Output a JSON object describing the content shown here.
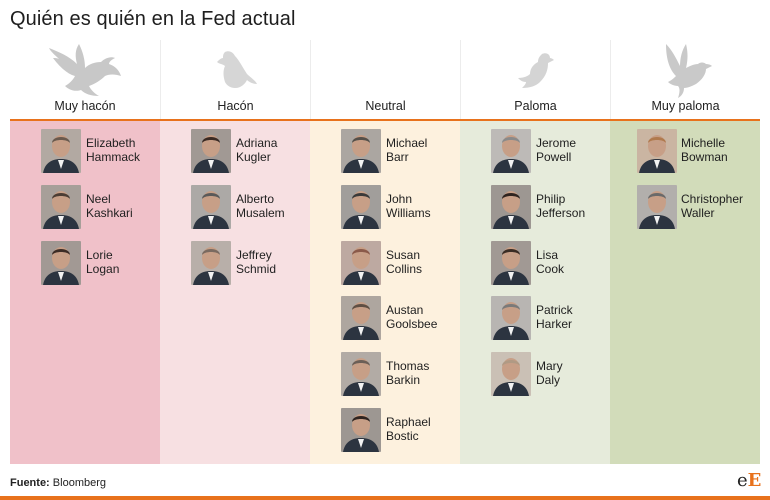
{
  "title": "Quién es quién en la Fed actual",
  "source": {
    "label": "Fuente:",
    "value": "Bloomberg"
  },
  "logo": {
    "char1": "e",
    "char2": "E"
  },
  "accent_color": "#e8721c",
  "columns": [
    {
      "label": "Muy hacón",
      "icon": "hawk-large-icon",
      "bg": "#f0c1c9",
      "people": [
        {
          "first": "Elizabeth",
          "last": "Hammack",
          "avatar_color": "#6a5a4e"
        },
        {
          "first": "Neel",
          "last": "Kashkari",
          "avatar_color": "#4b3d34"
        },
        {
          "first": "Lorie",
          "last": "Logan",
          "avatar_color": "#3c2c26"
        }
      ]
    },
    {
      "label": "Hacón",
      "icon": "hawk-small-icon",
      "bg": "#f7e0e2",
      "people": [
        {
          "first": "Adriana",
          "last": "Kugler",
          "avatar_color": "#3a2a24"
        },
        {
          "first": "Alberto",
          "last": "Musalem",
          "avatar_color": "#5a5a5a"
        },
        {
          "first": "Jeffrey",
          "last": "Schmid",
          "avatar_color": "#7a6a60"
        }
      ]
    },
    {
      "label": "Neutral",
      "icon": "",
      "bg": "#fdf1de",
      "people": [
        {
          "first": "Michael",
          "last": "Barr",
          "avatar_color": "#55504a"
        },
        {
          "first": "John",
          "last": "Williams",
          "avatar_color": "#3a3a3a"
        },
        {
          "first": "Susan",
          "last": "Collins",
          "avatar_color": "#8a5a4a"
        },
        {
          "first": "Austan",
          "last": "Goolsbee",
          "avatar_color": "#5f4f44"
        },
        {
          "first": "Thomas",
          "last": "Barkin",
          "avatar_color": "#6b5f57"
        },
        {
          "first": "Raphael",
          "last": "Bostic",
          "avatar_color": "#2e2420"
        }
      ]
    },
    {
      "label": "Paloma",
      "icon": "dove-small-icon",
      "bg": "#e6ebdb",
      "people": [
        {
          "first": "Jerome",
          "last": "Powell",
          "avatar_color": "#8a8a8a"
        },
        {
          "first": "Philip",
          "last": "Jefferson",
          "avatar_color": "#2e2420"
        },
        {
          "first": "Lisa",
          "last": "Cook",
          "avatar_color": "#3a2c24"
        },
        {
          "first": "Patrick",
          "last": "Harker",
          "avatar_color": "#7a7a7a"
        },
        {
          "first": "Mary",
          "last": "Daly",
          "avatar_color": "#b09a84"
        }
      ]
    },
    {
      "label": "Muy paloma",
      "icon": "dove-large-icon",
      "bg": "#d2dcba",
      "people": [
        {
          "first": "Michelle",
          "last": "Bowman",
          "avatar_color": "#b07a4e"
        },
        {
          "first": "Christopher",
          "last": "Waller",
          "avatar_color": "#6a6a6a"
        }
      ]
    }
  ]
}
